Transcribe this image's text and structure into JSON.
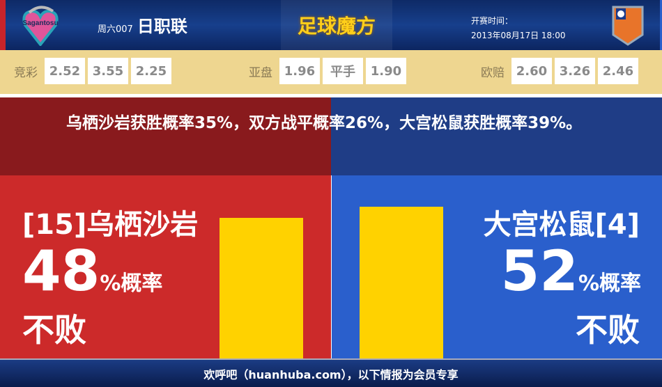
{
  "header": {
    "home_logo_text": "Sagantosu",
    "match_no": "周六007",
    "league": "日职联",
    "brand": "足球魔方",
    "time_label": "开赛时间：",
    "time_value": "2013年08月17日 18:00"
  },
  "odds": [
    {
      "label": "竞彩",
      "values": [
        "2.52",
        "3.55",
        "2.25"
      ]
    },
    {
      "label": "亚盘",
      "values": [
        "1.96",
        "平手",
        "1.90"
      ]
    },
    {
      "label": "欧赔",
      "values": [
        "2.60",
        "3.26",
        "2.46"
      ]
    }
  ],
  "summary": "乌栖沙岩获胜概率35%，双方战平概率26%，大宫松鼠获胜概率39%。",
  "home": {
    "name": "[15]乌栖沙岩",
    "percent": "48",
    "unit": "%概率",
    "result": "不败",
    "bar_value": 48,
    "color": "#cc2a2a"
  },
  "away": {
    "name": "大宫松鼠[4]",
    "percent": "52",
    "unit": "%概率",
    "result": "不败",
    "bar_value": 52,
    "color": "#2a5fcc"
  },
  "bar_color": "#ffd200",
  "footer": "欢呼吧（huanhuba.com），以下情报为会员专享"
}
